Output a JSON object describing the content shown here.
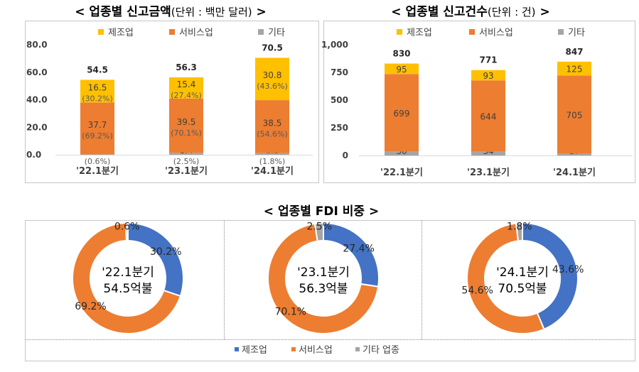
{
  "colors": {
    "manufacturing": "#FFC000",
    "service": "#ED7D31",
    "other": "#A5A5A5",
    "donut_manufacturing": "#4472C4",
    "donut_service": "#ED7D31",
    "donut_other": "#A5A5A5"
  },
  "chart_data": [
    {
      "type": "bar",
      "stacked": true,
      "title": "< 업종별 신고금액",
      "title_unit": "(단위 : 백만 달러)",
      "title_close": " >",
      "categories": [
        "'22.1분기",
        "'23.1분기",
        "'24.1분기"
      ],
      "legend": [
        "제조업",
        "서비스업",
        "기타"
      ],
      "legend_position": "top",
      "series": [
        {
          "name": "기타",
          "values": [
            0.3,
            1.4,
            1.2
          ],
          "labels": [
            "0.3",
            "1.4",
            "1.2"
          ],
          "pct_labels": [
            "(0.6%)",
            "(2.5%)",
            "(1.8%)"
          ]
        },
        {
          "name": "서비스업",
          "values": [
            37.7,
            39.5,
            38.5
          ],
          "labels": [
            "37.7",
            "39.5",
            "38.5"
          ],
          "pct_labels": [
            "(69.2%)",
            "(70.1%)",
            "(54.6%)"
          ]
        },
        {
          "name": "제조업",
          "values": [
            16.5,
            15.4,
            30.8
          ],
          "labels": [
            "16.5",
            "15.4",
            "30.8"
          ],
          "pct_labels": [
            "(30.2%)",
            "(27.4%)",
            "(43.6%)"
          ]
        }
      ],
      "totals": [
        "54.5",
        "56.3",
        "70.5"
      ],
      "ylim": [
        0,
        80
      ],
      "yticks": [
        "0.0",
        "20.0",
        "40.0",
        "60.0",
        "80.0"
      ],
      "grid": false
    },
    {
      "type": "bar",
      "stacked": true,
      "title": "< 업종별 신고건수",
      "title_unit": "(단위 : 건)",
      "title_close": " >",
      "categories": [
        "'22.1분기",
        "'23.1분기",
        "'24.1분기"
      ],
      "legend": [
        "제조업",
        "서비스업",
        "기타"
      ],
      "legend_position": "top",
      "series": [
        {
          "name": "기타",
          "values": [
            36,
            34,
            17
          ],
          "labels": [
            "36",
            "34",
            "17"
          ]
        },
        {
          "name": "서비스업",
          "values": [
            699,
            644,
            705
          ],
          "labels": [
            "699",
            "644",
            "705"
          ]
        },
        {
          "name": "제조업",
          "values": [
            95,
            93,
            125
          ],
          "labels": [
            "95",
            "93",
            "125"
          ]
        }
      ],
      "totals": [
        "830",
        "771",
        "847"
      ],
      "ylim": [
        0,
        1000
      ],
      "yticks": [
        "0",
        "250",
        "500",
        "750",
        "1,000"
      ],
      "grid": false
    },
    {
      "type": "pie",
      "donut": true,
      "title": "< 업종별 FDI 비중 >",
      "legend": [
        "제조업",
        "서비스업",
        "기타 업종"
      ],
      "legend_position": "bottom",
      "pies": [
        {
          "center": [
            "'22.1분기",
            "54.5억불"
          ],
          "values": [
            30.2,
            69.2,
            0.6
          ],
          "labels": [
            "30.2%",
            "69.2%",
            "0.6%"
          ]
        },
        {
          "center": [
            "'23.1분기",
            "56.3억불"
          ],
          "values": [
            27.4,
            70.1,
            2.5
          ],
          "labels": [
            "27.4%",
            "70.1%",
            "2.5%"
          ]
        },
        {
          "center": [
            "'24.1분기",
            "70.5억불"
          ],
          "values": [
            43.6,
            54.6,
            1.8
          ],
          "labels": [
            "43.6%",
            "54.6%",
            "1.8%"
          ]
        }
      ]
    }
  ]
}
